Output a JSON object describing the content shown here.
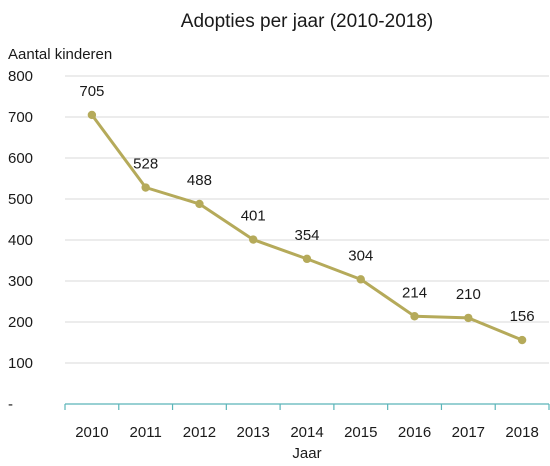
{
  "chart_data": {
    "type": "line",
    "title": "Adopties per jaar (2010-2018)",
    "ylabel": "Aantal kinderen",
    "xlabel": "Jaar",
    "categories": [
      "2010",
      "2011",
      "2012",
      "2013",
      "2014",
      "2015",
      "2016",
      "2017",
      "2018"
    ],
    "series": [
      {
        "values": [
          705,
          528,
          488,
          401,
          354,
          304,
          214,
          210,
          156
        ],
        "color": "#b5aa5a"
      }
    ],
    "data_labels": [
      "705",
      "528",
      "488",
      "401",
      "354",
      "304",
      "214",
      "210",
      "156"
    ],
    "y_ticks": [
      "800",
      "700",
      "600",
      "500",
      "400",
      "300",
      "200",
      "100",
      "-"
    ],
    "ylim": [
      0,
      800
    ],
    "grid": true,
    "legend": "none"
  }
}
